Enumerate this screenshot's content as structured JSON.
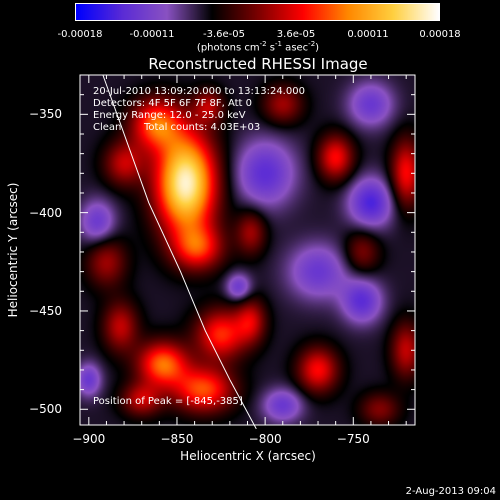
{
  "colorbar": {
    "tick_labels": [
      "-0.00018",
      "-0.00011",
      "-3.6e-05",
      "3.6e-05",
      "0.00011",
      "0.00018"
    ],
    "unit_label": {
      "base": "(photons cm",
      "e1": "-2",
      "mid1": " s",
      "e2": "-1",
      "mid2": " asec",
      "e3": "-2",
      "end": ")"
    },
    "colors": [
      "#0000ff",
      "#5a2bd6",
      "#8a52c2",
      "#000000",
      "#7a0000",
      "#ff0000",
      "#ff8800",
      "#ffd040",
      "#ffffff"
    ]
  },
  "chart_data": {
    "type": "heatmap",
    "title": "Reconstructed RHESSI Image",
    "xlabel": "Heliocentric X (arcsec)",
    "ylabel": "Heliocentric Y (arcsec)",
    "xlim": [
      -905,
      -715
    ],
    "ylim": [
      -508,
      -330
    ],
    "x_ticks": [
      -900,
      -850,
      -800,
      -750
    ],
    "x_tick_labels": [
      "−900",
      "−850",
      "−800",
      "−750"
    ],
    "y_ticks": [
      -350,
      -400,
      -450,
      -500
    ],
    "y_tick_labels": [
      "−350",
      "−400",
      "−450",
      "−500"
    ],
    "grid": false,
    "background_value": 0.35,
    "sources": [
      {
        "x": -845,
        "y": -385,
        "sx": 12,
        "sy": 18,
        "amp": 1.0
      },
      {
        "x": -862,
        "y": -355,
        "sx": 10,
        "sy": 9,
        "amp": 0.55
      },
      {
        "x": -880,
        "y": -375,
        "sx": 8,
        "sy": 8,
        "amp": 0.35
      },
      {
        "x": -838,
        "y": -418,
        "sx": 10,
        "sy": 8,
        "amp": 0.45
      },
      {
        "x": -825,
        "y": -462,
        "sx": 10,
        "sy": 9,
        "amp": 0.5
      },
      {
        "x": -835,
        "y": -490,
        "sx": 12,
        "sy": 8,
        "amp": 0.55
      },
      {
        "x": -858,
        "y": -477,
        "sx": 10,
        "sy": 8,
        "amp": 0.6
      },
      {
        "x": -882,
        "y": -458,
        "sx": 7,
        "sy": 9,
        "amp": 0.35
      },
      {
        "x": -890,
        "y": -425,
        "sx": 8,
        "sy": 9,
        "amp": 0.3
      },
      {
        "x": -808,
        "y": -455,
        "sx": 6,
        "sy": 8,
        "amp": 0.35
      },
      {
        "x": -808,
        "y": -410,
        "sx": 6,
        "sy": 8,
        "amp": 0.3
      },
      {
        "x": -760,
        "y": -372,
        "sx": 7,
        "sy": 8,
        "amp": 0.45
      },
      {
        "x": -720,
        "y": -380,
        "sx": 6,
        "sy": 12,
        "amp": 0.45
      },
      {
        "x": -770,
        "y": -480,
        "sx": 8,
        "sy": 8,
        "amp": 0.45
      },
      {
        "x": -720,
        "y": -470,
        "sx": 6,
        "sy": 10,
        "amp": 0.35
      },
      {
        "x": -745,
        "y": -420,
        "sx": 7,
        "sy": 8,
        "amp": 0.25
      },
      {
        "x": -790,
        "y": -345,
        "sx": 8,
        "sy": 7,
        "amp": 0.3
      },
      {
        "x": -832,
        "y": -346,
        "sx": 6,
        "sy": 6,
        "amp": 0.3
      },
      {
        "x": -870,
        "y": -495,
        "sx": 8,
        "sy": 6,
        "amp": 0.35
      },
      {
        "x": -735,
        "y": -500,
        "sx": 8,
        "sy": 6,
        "amp": 0.25
      },
      {
        "x": -800,
        "y": -380,
        "sx": 12,
        "sy": 12,
        "amp": -0.35
      },
      {
        "x": -770,
        "y": -430,
        "sx": 12,
        "sy": 10,
        "amp": -0.3
      },
      {
        "x": -740,
        "y": -395,
        "sx": 9,
        "sy": 9,
        "amp": -0.4
      },
      {
        "x": -745,
        "y": -445,
        "sx": 8,
        "sy": 8,
        "amp": -0.35
      },
      {
        "x": -740,
        "y": -345,
        "sx": 9,
        "sy": 8,
        "amp": -0.3
      },
      {
        "x": -895,
        "y": -405,
        "sx": 7,
        "sy": 8,
        "amp": -0.3
      },
      {
        "x": -900,
        "y": -485,
        "sx": 5,
        "sy": 6,
        "amp": -0.3
      },
      {
        "x": -790,
        "y": -498,
        "sx": 8,
        "sy": 6,
        "amp": -0.3
      },
      {
        "x": -815,
        "y": -438,
        "sx": 5,
        "sy": 5,
        "amp": -0.3
      }
    ],
    "limb_points": [
      [
        -892,
        -330
      ],
      [
        -880,
        -360
      ],
      [
        -866,
        -395
      ],
      [
        -848,
        -430
      ],
      [
        -834,
        -460
      ],
      [
        -820,
        -485
      ],
      [
        -805,
        -510
      ]
    ],
    "annotations": {
      "time": "20-Jul-2010 13:09:20.000 to 13:13:24.000",
      "detectors": "Detectors: 4F 5F 6F 7F 8F, Att 0",
      "energy": "Energy Range: 12.0 - 25.0 keV",
      "method": "Clean",
      "counts": "Total counts: 4.03E+03",
      "peak": "Position of Peak = [-845,-385]"
    }
  },
  "footer": {
    "date": "2-Aug-2013 09:04"
  }
}
